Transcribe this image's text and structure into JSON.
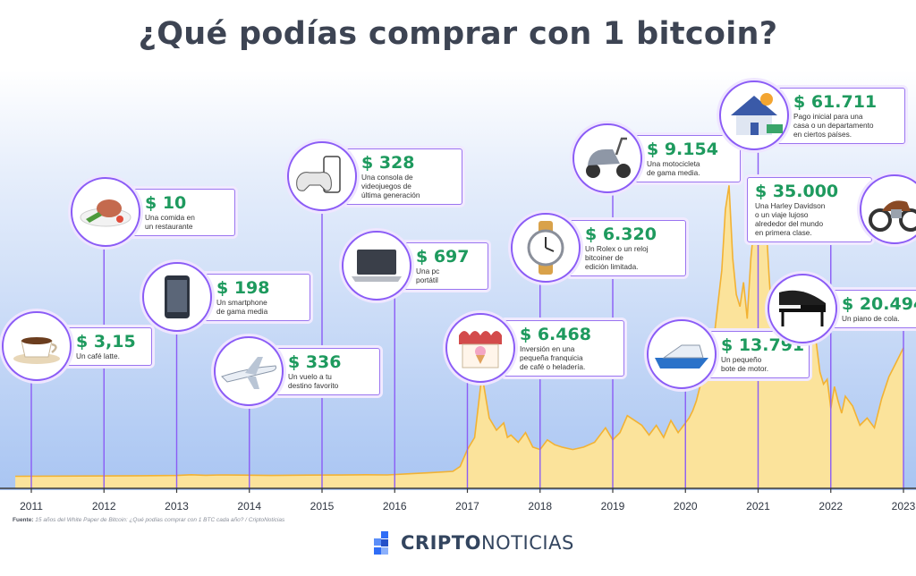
{
  "title": "¿Qué podías comprar con 1 bitcoin?",
  "source": {
    "label": "Fuente:",
    "text": "15 años del White Paper de Bitcoin: ¿Qué podías comprar con 1 BTC cada año? / CriptoNoticias"
  },
  "brand": {
    "part1": "CRIPTO",
    "part2": "NOTICIAS"
  },
  "colors": {
    "title": "#3d4453",
    "price": "#1e9a5e",
    "accent": "#8b5cf6",
    "area_fill": "#fbe39b",
    "area_stroke": "#f2b233",
    "sky_top": "#ffffff",
    "sky_bottom": "#a9c5f2"
  },
  "chart_data": {
    "type": "area",
    "x_ticks": [
      "2011",
      "2012",
      "2013",
      "2014",
      "2015",
      "2016",
      "2017",
      "2018",
      "2019",
      "2020",
      "2021",
      "2022",
      "2023"
    ],
    "xlim": [
      2010.775,
      2023.05
    ],
    "series": [
      {
        "x": [
          2010.78,
          2012.5,
          2013.0,
          2013.2,
          2013.4,
          2013.6,
          2013.9,
          2014.3,
          2014.8,
          2015.2,
          2015.6,
          2015.9,
          2016.2,
          2016.5,
          2016.8,
          2016.9,
          2017.0,
          2017.1,
          2017.2,
          2017.25,
          2017.3,
          2017.4,
          2017.5,
          2017.55,
          2017.6,
          2017.7,
          2017.8,
          2017.9,
          2018.0,
          2018.1,
          2018.2,
          2018.3,
          2018.45,
          2018.6,
          2018.75,
          2018.9,
          2019.0,
          2019.1,
          2019.2,
          2019.3,
          2019.4,
          2019.5,
          2019.6,
          2019.7,
          2019.8,
          2019.9,
          2020.0,
          2020.05,
          2020.1,
          2020.15,
          2020.2,
          2020.3,
          2020.4,
          2020.5,
          2020.55,
          2020.6,
          2020.65,
          2020.7,
          2020.75,
          2020.8,
          2020.85,
          2020.9,
          2020.95,
          2021.0,
          2021.05,
          2021.1,
          2021.15,
          2021.2,
          2021.25,
          2021.3,
          2021.35,
          2021.4,
          2021.45,
          2021.5,
          2021.55,
          2021.6,
          2021.65,
          2021.7,
          2021.75,
          2021.8,
          2021.85,
          2021.9,
          2021.95,
          2022.0,
          2022.05,
          2022.1,
          2022.15,
          2022.2,
          2022.3,
          2022.4,
          2022.5,
          2022.6,
          2022.7,
          2022.8,
          2022.9,
          2023.0
        ],
        "y": [
          500,
          520,
          530,
          560,
          540,
          555,
          545,
          530,
          545,
          550,
          560,
          555,
          600,
          650,
          700,
          900,
          1600,
          2100,
          4700,
          3800,
          2900,
          2400,
          2700,
          2100,
          2200,
          1900,
          2300,
          1700,
          1600,
          2000,
          1800,
          1700,
          1600,
          1700,
          1900,
          2500,
          2000,
          2300,
          3000,
          2800,
          2600,
          2200,
          2600,
          2100,
          2800,
          2300,
          2700,
          2900,
          3200,
          3600,
          4200,
          5100,
          6400,
          9000,
          11500,
          12500,
          9500,
          8000,
          7500,
          8500,
          7000,
          9500,
          11000,
          10000,
          12600,
          11500,
          8800,
          6500,
          5400,
          4700,
          5200,
          7000,
          8800,
          7500,
          6000,
          5200,
          6500,
          8700,
          8000,
          6000,
          4800,
          4300,
          4500,
          3300,
          4200,
          3600,
          3100,
          3800,
          3400,
          2600,
          2900,
          2500,
          3700,
          4600,
          5200,
          5800
        ]
      }
    ],
    "items": [
      {
        "year": "2011",
        "x": 2011.0,
        "price": "$ 3,15",
        "desc": "Un café latte.",
        "icon": "coffee-cup"
      },
      {
        "year": "2012",
        "x": 2012.0,
        "price": "$ 10",
        "desc": "Una comida en\nun restaurante",
        "icon": "meal-plate"
      },
      {
        "year": "2013",
        "x": 2013.0,
        "price": "$ 198",
        "desc": "Un smartphone\nde gama media",
        "icon": "smartphone"
      },
      {
        "year": "2014",
        "x": 2014.0,
        "price": "$ 336",
        "desc": "Un vuelo a tu\ndestino favorito",
        "icon": "airplane"
      },
      {
        "year": "2015",
        "x": 2015.0,
        "price": "$ 328",
        "desc": "Una consola de\nvideojuegos de\núltima generación",
        "icon": "game-console"
      },
      {
        "year": "2016",
        "x": 2016.0,
        "price": "$ 697",
        "desc": "Una pc\nportátil",
        "icon": "laptop"
      },
      {
        "year": "2017",
        "x": 2017.0,
        "price": "$ 6.468",
        "desc": "Inversión en una\npequeña franquicia\nde café o heladería.",
        "icon": "ice-cream-shop"
      },
      {
        "year": "2018",
        "x": 2018.0,
        "price": "$ 6.320",
        "desc": "Un Rolex o un reloj\nbitcoiner de\nedición limitada.",
        "icon": "wristwatch"
      },
      {
        "year": "2019",
        "x": 2019.0,
        "price": "$ 9.154",
        "desc": "Una motocicleta\nde gama media.",
        "icon": "scooter"
      },
      {
        "year": "2020",
        "x": 2020.0,
        "price": "$ 13.791",
        "desc": "Un pequeño\nbote de motor.",
        "icon": "motor-boat"
      },
      {
        "year": "2021",
        "x": 2021.0,
        "price": "$ 61.711",
        "desc": "Pago inicial para una\ncasa o un departamento\nen ciertos países.",
        "icon": "house"
      },
      {
        "year": "2022",
        "x": 2022.0,
        "price": "$ 35.000",
        "desc": "Una Harley Davidson\no un viaje lujoso\nalrededor del mundo\nen primera clase.",
        "icon": "motorcycle"
      },
      {
        "year": "2023",
        "x": 2023.0,
        "price": "$ 20.494",
        "desc": "Un piano de cola.",
        "icon": "grand-piano"
      }
    ]
  }
}
